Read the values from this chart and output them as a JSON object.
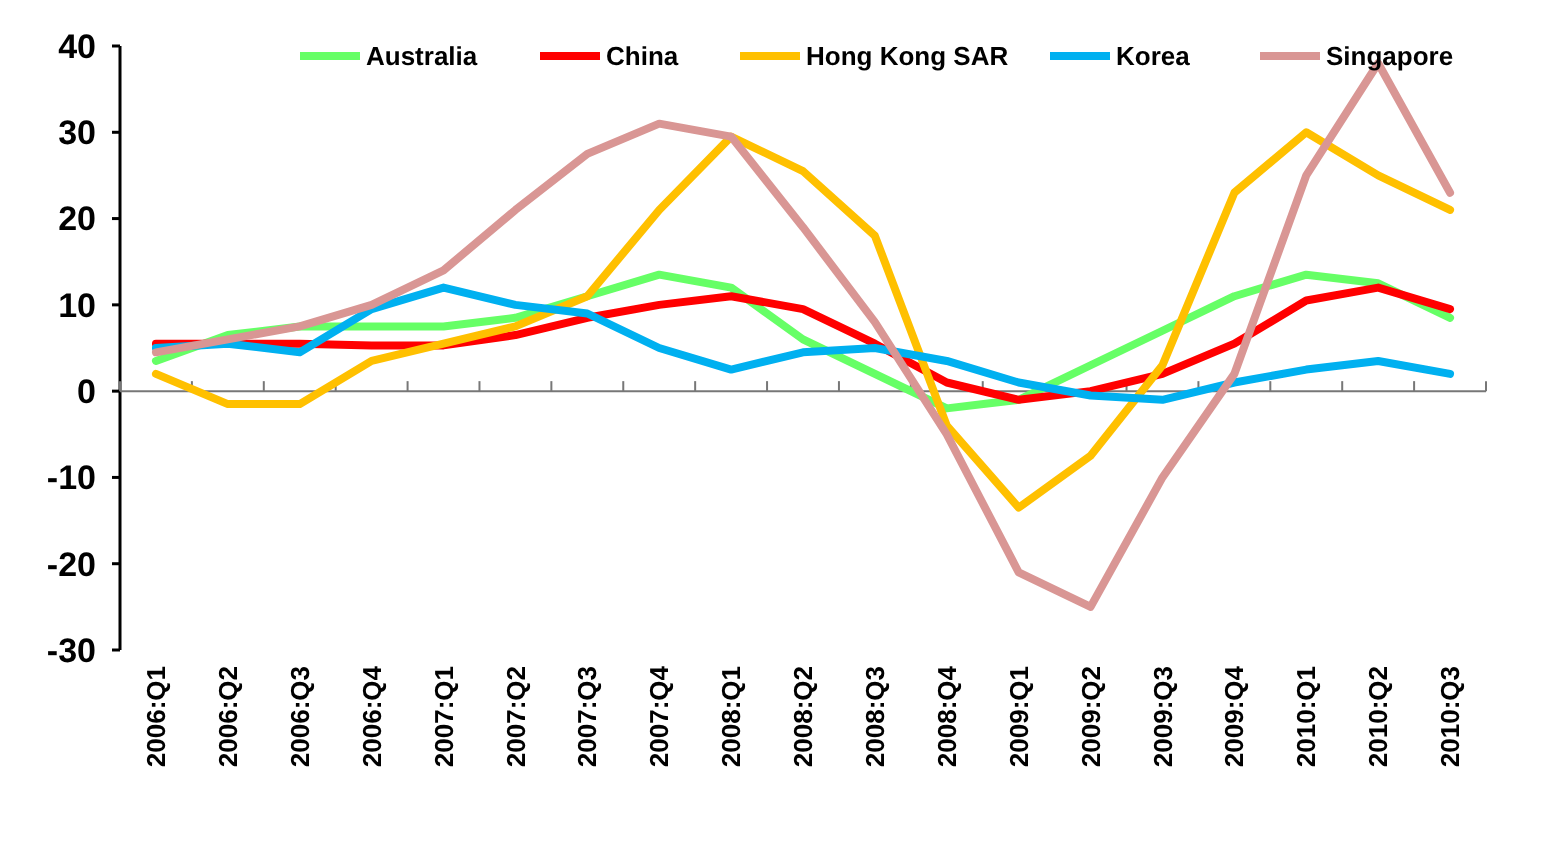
{
  "chart_data": {
    "type": "line",
    "categories": [
      "2006:Q1",
      "2006:Q2",
      "2006:Q3",
      "2006:Q4",
      "2007:Q1",
      "2007:Q2",
      "2007:Q3",
      "2007:Q4",
      "2008:Q1",
      "2008:Q2",
      "2008:Q3",
      "2008:Q4",
      "2009:Q1",
      "2009:Q2",
      "2009:Q3",
      "2009:Q4",
      "2010:Q1",
      "2010:Q2",
      "2010:Q3"
    ],
    "series": [
      {
        "name": "Australia",
        "color": "#66ff66",
        "values": [
          3.5,
          6.5,
          7.5,
          7.5,
          7.5,
          8.5,
          11,
          13.5,
          12,
          6,
          2,
          -2,
          -1,
          3,
          7,
          11,
          13.5,
          12.5,
          8.5
        ]
      },
      {
        "name": "China",
        "color": "#ff0000",
        "values": [
          5.5,
          5.5,
          5.5,
          5.3,
          5.3,
          6.5,
          8.5,
          10,
          11,
          9.5,
          5.5,
          1,
          -1,
          0,
          2,
          5.5,
          10.5,
          12,
          9.5
        ]
      },
      {
        "name": "Hong Kong SAR",
        "color": "#ffc000",
        "values": [
          2,
          -1.5,
          -1.5,
          3.5,
          5.5,
          7.5,
          11,
          21,
          29.5,
          25.5,
          18,
          -4,
          -13.5,
          -7.5,
          3,
          23,
          30,
          25,
          21
        ]
      },
      {
        "name": "Korea",
        "color": "#00b0f0",
        "values": [
          5,
          5.5,
          4.5,
          9.5,
          12,
          10,
          9,
          5,
          2.5,
          4.5,
          5,
          3.5,
          1,
          -0.5,
          -1,
          1,
          2.5,
          3.5,
          2
        ]
      },
      {
        "name": "Singapore",
        "color": "#d99694",
        "values": [
          4.5,
          6,
          7.5,
          10,
          14,
          21,
          27.5,
          31,
          29.5,
          19,
          8,
          -5,
          -21,
          -25,
          -10,
          2,
          25,
          38,
          23
        ]
      }
    ],
    "ylim": [
      -30,
      40
    ],
    "yticks": [
      -30,
      -20,
      -10,
      0,
      10,
      20,
      30,
      40
    ],
    "legend": "top",
    "line_style": "solid",
    "marker": "none"
  }
}
